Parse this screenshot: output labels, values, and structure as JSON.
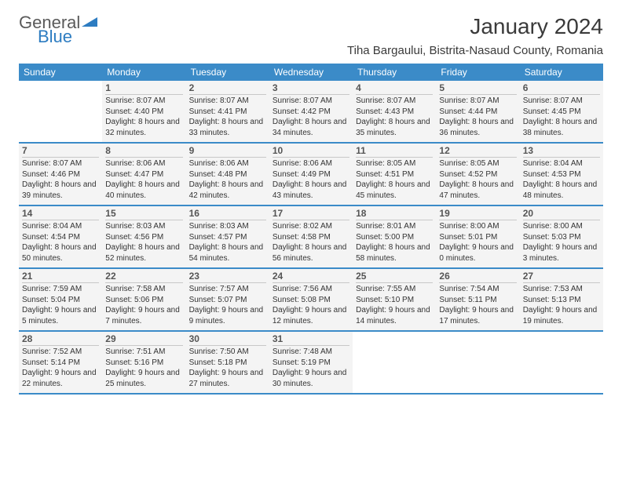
{
  "brand": {
    "word1": "General",
    "word2": "Blue"
  },
  "title": "January 2024",
  "location": "Tiha Bargaului, Bistrita-Nasaud County, Romania",
  "colors": {
    "header_bg": "#3b8bc8",
    "header_text": "#ffffff",
    "cell_bg": "#f4f4f4",
    "brand_gray": "#5a5a5a",
    "brand_blue": "#2d7cc1"
  },
  "day_names": [
    "Sunday",
    "Monday",
    "Tuesday",
    "Wednesday",
    "Thursday",
    "Friday",
    "Saturday"
  ],
  "first_weekday": 1,
  "days": [
    {
      "n": 1,
      "sr": "8:07 AM",
      "ss": "4:40 PM",
      "dl": "8 hours and 32 minutes."
    },
    {
      "n": 2,
      "sr": "8:07 AM",
      "ss": "4:41 PM",
      "dl": "8 hours and 33 minutes."
    },
    {
      "n": 3,
      "sr": "8:07 AM",
      "ss": "4:42 PM",
      "dl": "8 hours and 34 minutes."
    },
    {
      "n": 4,
      "sr": "8:07 AM",
      "ss": "4:43 PM",
      "dl": "8 hours and 35 minutes."
    },
    {
      "n": 5,
      "sr": "8:07 AM",
      "ss": "4:44 PM",
      "dl": "8 hours and 36 minutes."
    },
    {
      "n": 6,
      "sr": "8:07 AM",
      "ss": "4:45 PM",
      "dl": "8 hours and 38 minutes."
    },
    {
      "n": 7,
      "sr": "8:07 AM",
      "ss": "4:46 PM",
      "dl": "8 hours and 39 minutes."
    },
    {
      "n": 8,
      "sr": "8:06 AM",
      "ss": "4:47 PM",
      "dl": "8 hours and 40 minutes."
    },
    {
      "n": 9,
      "sr": "8:06 AM",
      "ss": "4:48 PM",
      "dl": "8 hours and 42 minutes."
    },
    {
      "n": 10,
      "sr": "8:06 AM",
      "ss": "4:49 PM",
      "dl": "8 hours and 43 minutes."
    },
    {
      "n": 11,
      "sr": "8:05 AM",
      "ss": "4:51 PM",
      "dl": "8 hours and 45 minutes."
    },
    {
      "n": 12,
      "sr": "8:05 AM",
      "ss": "4:52 PM",
      "dl": "8 hours and 47 minutes."
    },
    {
      "n": 13,
      "sr": "8:04 AM",
      "ss": "4:53 PM",
      "dl": "8 hours and 48 minutes."
    },
    {
      "n": 14,
      "sr": "8:04 AM",
      "ss": "4:54 PM",
      "dl": "8 hours and 50 minutes."
    },
    {
      "n": 15,
      "sr": "8:03 AM",
      "ss": "4:56 PM",
      "dl": "8 hours and 52 minutes."
    },
    {
      "n": 16,
      "sr": "8:03 AM",
      "ss": "4:57 PM",
      "dl": "8 hours and 54 minutes."
    },
    {
      "n": 17,
      "sr": "8:02 AM",
      "ss": "4:58 PM",
      "dl": "8 hours and 56 minutes."
    },
    {
      "n": 18,
      "sr": "8:01 AM",
      "ss": "5:00 PM",
      "dl": "8 hours and 58 minutes."
    },
    {
      "n": 19,
      "sr": "8:00 AM",
      "ss": "5:01 PM",
      "dl": "9 hours and 0 minutes."
    },
    {
      "n": 20,
      "sr": "8:00 AM",
      "ss": "5:03 PM",
      "dl": "9 hours and 3 minutes."
    },
    {
      "n": 21,
      "sr": "7:59 AM",
      "ss": "5:04 PM",
      "dl": "9 hours and 5 minutes."
    },
    {
      "n": 22,
      "sr": "7:58 AM",
      "ss": "5:06 PM",
      "dl": "9 hours and 7 minutes."
    },
    {
      "n": 23,
      "sr": "7:57 AM",
      "ss": "5:07 PM",
      "dl": "9 hours and 9 minutes."
    },
    {
      "n": 24,
      "sr": "7:56 AM",
      "ss": "5:08 PM",
      "dl": "9 hours and 12 minutes."
    },
    {
      "n": 25,
      "sr": "7:55 AM",
      "ss": "5:10 PM",
      "dl": "9 hours and 14 minutes."
    },
    {
      "n": 26,
      "sr": "7:54 AM",
      "ss": "5:11 PM",
      "dl": "9 hours and 17 minutes."
    },
    {
      "n": 27,
      "sr": "7:53 AM",
      "ss": "5:13 PM",
      "dl": "9 hours and 19 minutes."
    },
    {
      "n": 28,
      "sr": "7:52 AM",
      "ss": "5:14 PM",
      "dl": "9 hours and 22 minutes."
    },
    {
      "n": 29,
      "sr": "7:51 AM",
      "ss": "5:16 PM",
      "dl": "9 hours and 25 minutes."
    },
    {
      "n": 30,
      "sr": "7:50 AM",
      "ss": "5:18 PM",
      "dl": "9 hours and 27 minutes."
    },
    {
      "n": 31,
      "sr": "7:48 AM",
      "ss": "5:19 PM",
      "dl": "9 hours and 30 minutes."
    }
  ],
  "labels": {
    "sunrise": "Sunrise:",
    "sunset": "Sunset:",
    "daylight": "Daylight:"
  }
}
